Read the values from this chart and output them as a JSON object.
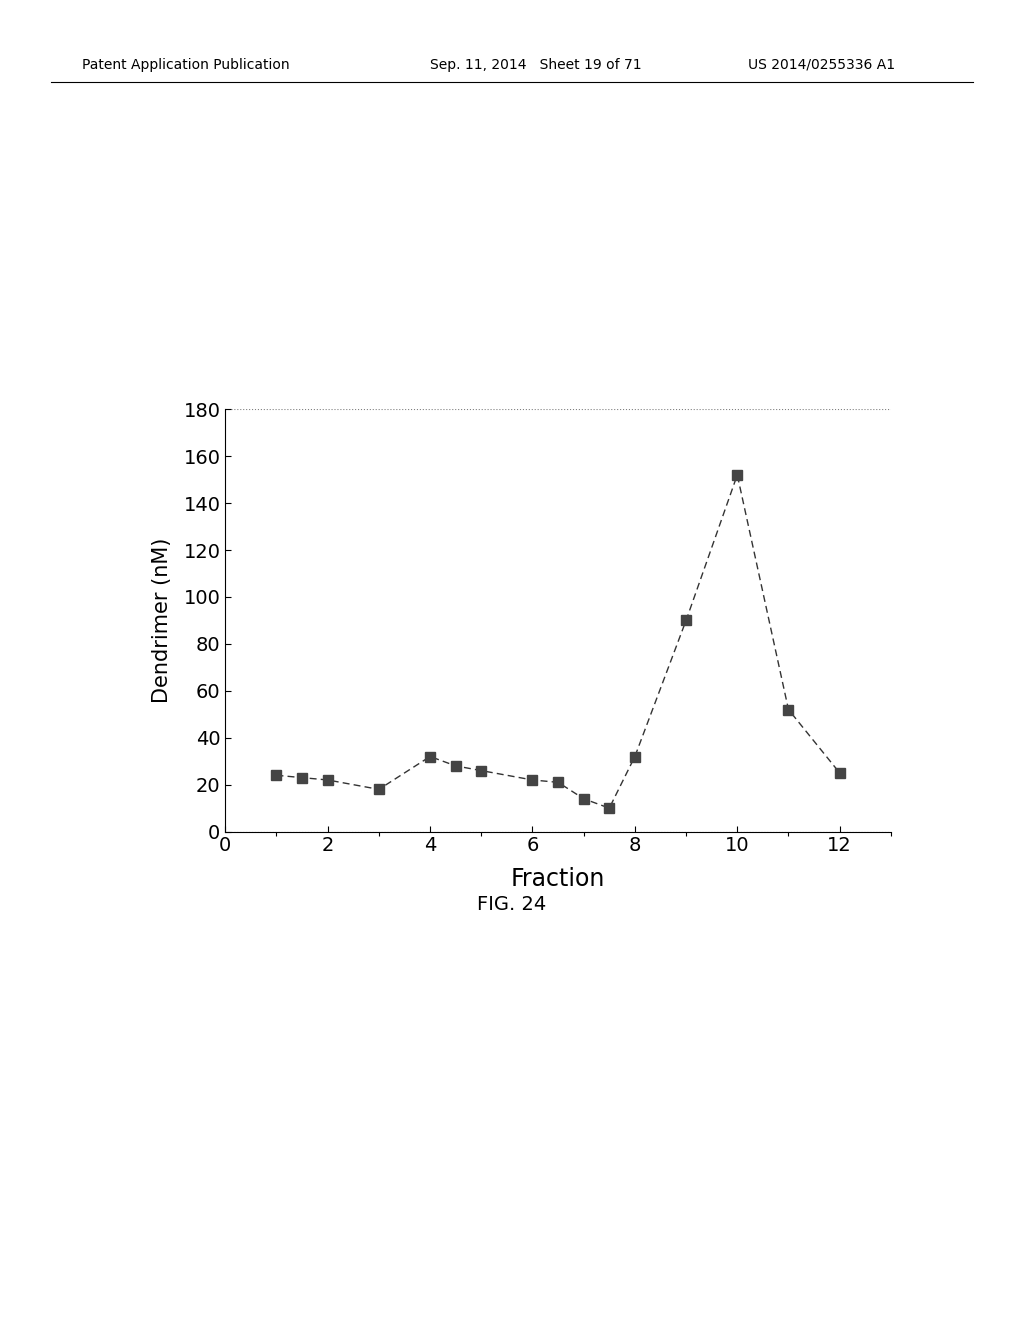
{
  "x": [
    1,
    1.5,
    2,
    3,
    4,
    4.5,
    5,
    6,
    6.5,
    7,
    7.5,
    8,
    9,
    10,
    11,
    12
  ],
  "y": [
    24,
    23,
    22,
    18,
    32,
    28,
    26,
    22,
    21,
    14,
    10,
    32,
    90,
    152,
    52,
    25
  ],
  "xlabel": "Fraction",
  "ylabel": "Dendrimer (nM)",
  "xlim": [
    0,
    13
  ],
  "ylim": [
    0,
    180
  ],
  "xticks": [
    0,
    2,
    4,
    6,
    8,
    10,
    12
  ],
  "yticks": [
    0,
    20,
    40,
    60,
    80,
    100,
    120,
    140,
    160,
    180
  ],
  "figcaption": "FIG. 24",
  "line_color": "#333333",
  "marker_color": "#444444",
  "background_color": "#ffffff",
  "header_left": "Patent Application Publication",
  "header_mid": "Sep. 11, 2014   Sheet 19 of 71",
  "header_right": "US 2014/0255336 A1"
}
